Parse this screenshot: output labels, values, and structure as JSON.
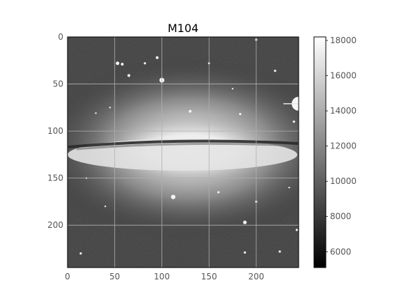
{
  "chart_data": {
    "type": "heatmap",
    "title": "M104",
    "xlabel": "",
    "ylabel": "",
    "xlim": [
      0,
      245
    ],
    "ylim": [
      245,
      0
    ],
    "x_ticks": [
      0,
      50,
      100,
      150,
      200
    ],
    "y_ticks": [
      0,
      50,
      100,
      150,
      200
    ],
    "grid": true,
    "colormap": "gray",
    "colorbar": {
      "range": [
        5100,
        18200
      ],
      "ticks": [
        6000,
        8000,
        10000,
        12000,
        14000,
        16000,
        18000
      ]
    },
    "image": {
      "object": "M104 galaxy",
      "background_value": 7600,
      "core_peak_value": 18000,
      "dust_lane_row": 115,
      "center": [
        135,
        120
      ]
    },
    "colors": {
      "grid": "#b0b0b0",
      "axes": "#000000"
    }
  }
}
